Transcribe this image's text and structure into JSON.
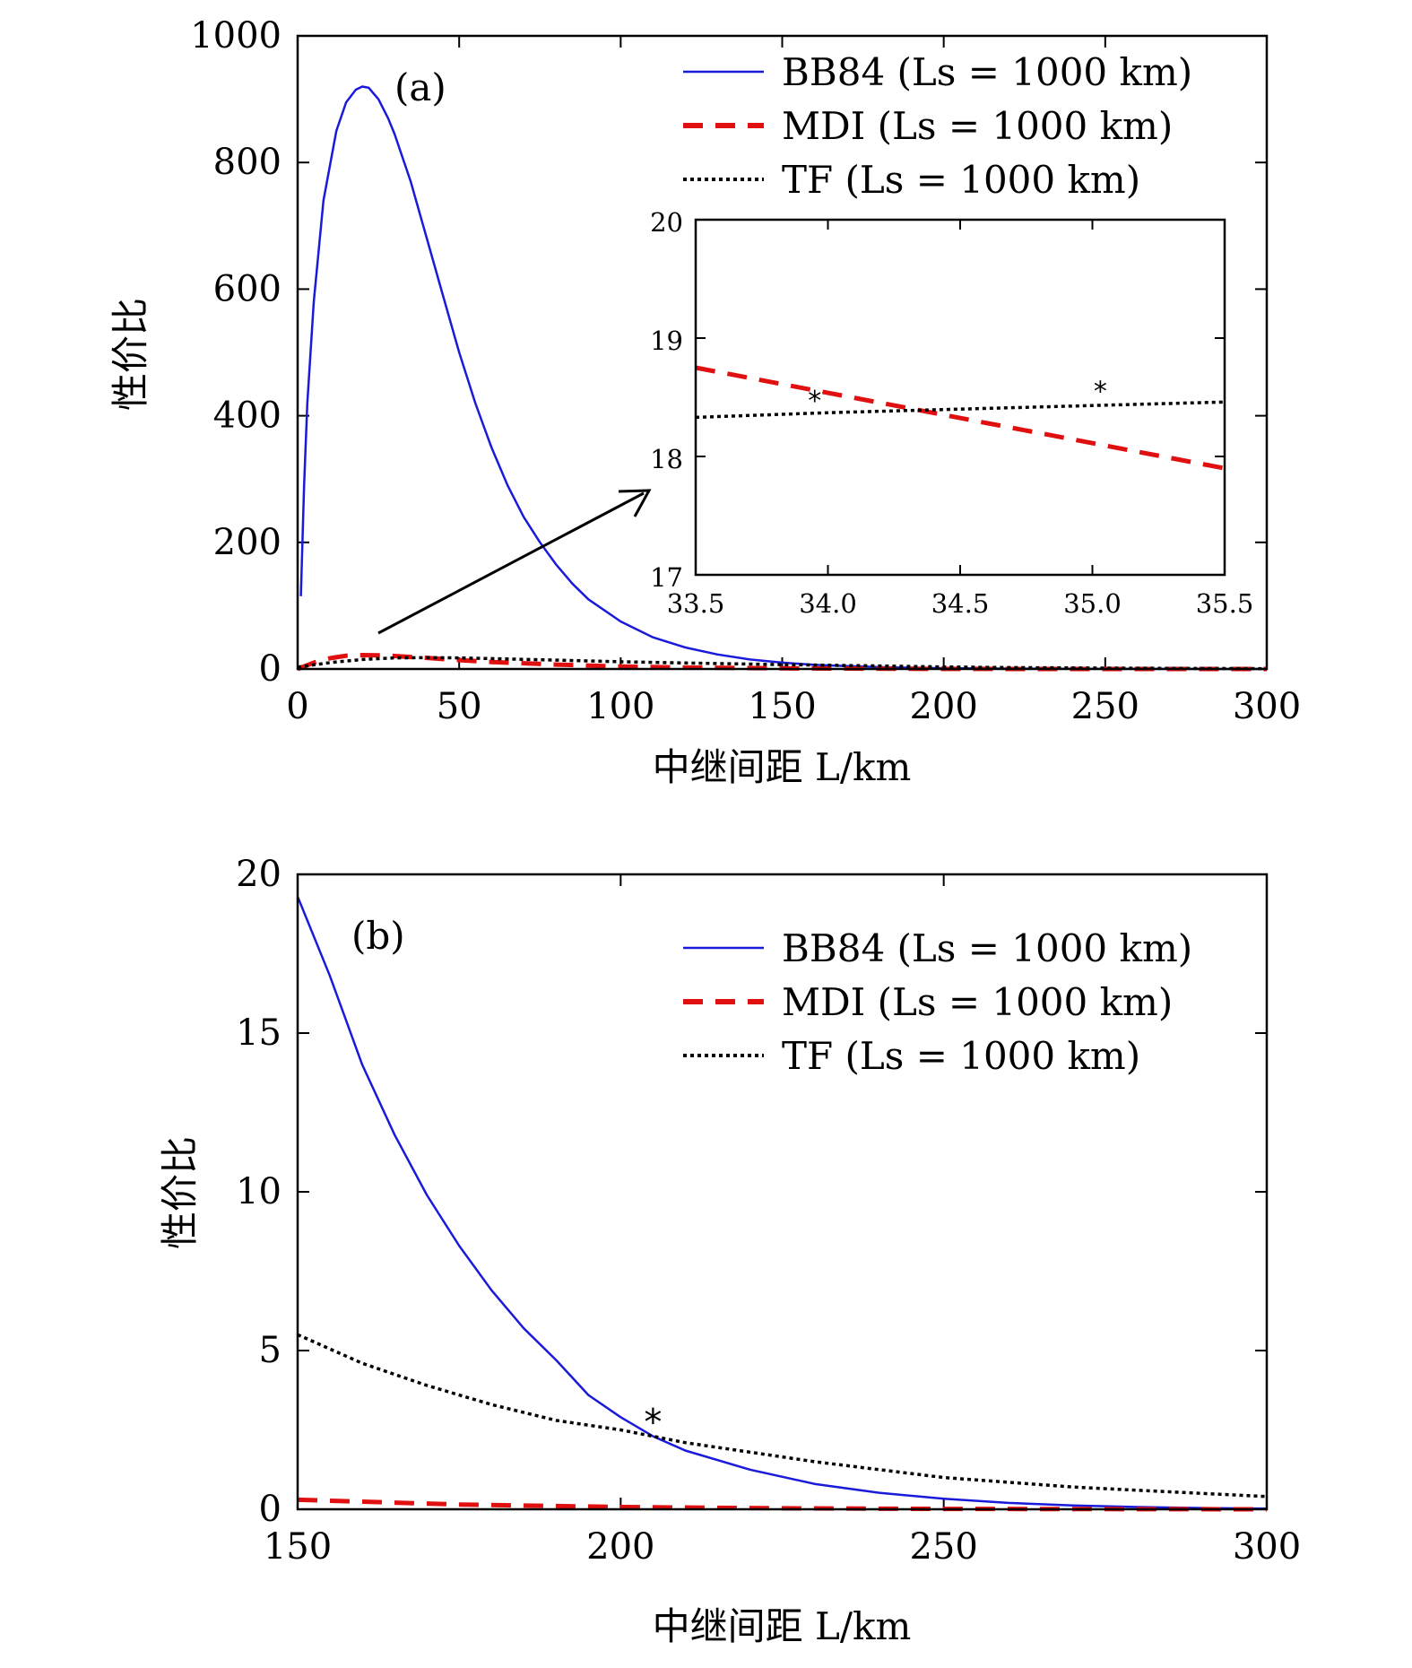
{
  "chart_data": [
    {
      "type": "line",
      "panel_label": "(a)",
      "xlabel": "中继间距 L/km",
      "ylabel": "性价比",
      "xlim": [
        0,
        300
      ],
      "ylim": [
        0,
        1000
      ],
      "xticks": [
        "0",
        "50",
        "100",
        "150",
        "200",
        "250",
        "300"
      ],
      "yticks": [
        "0",
        "200",
        "400",
        "600",
        "800",
        "1000"
      ],
      "legend_position": "top-right",
      "series": [
        {
          "name": "BB84 (Ls = 1000 km)",
          "color": "#1a1adb",
          "style": "solid",
          "x": [
            1,
            2,
            3,
            5,
            8,
            12,
            15,
            18,
            20,
            22,
            25,
            28,
            30,
            35,
            40,
            45,
            50,
            55,
            60,
            65,
            70,
            75,
            80,
            85,
            90,
            100,
            110,
            120,
            130,
            140,
            150,
            160,
            170,
            180,
            190,
            200,
            220,
            250,
            300
          ],
          "y": [
            115,
            290,
            420,
            580,
            740,
            850,
            895,
            915,
            920,
            918,
            900,
            870,
            845,
            770,
            680,
            590,
            500,
            420,
            350,
            290,
            240,
            200,
            165,
            135,
            110,
            75,
            50,
            34,
            23,
            15,
            10,
            6.5,
            4.5,
            3,
            2,
            1.3,
            0.5,
            0.15,
            0
          ]
        },
        {
          "name": "MDI (Ls = 1000 km)",
          "color": "#e01010",
          "style": "dashed",
          "x": [
            0,
            5,
            10,
            15,
            20,
            25,
            30,
            35,
            40,
            50,
            60,
            80,
            100,
            120,
            150,
            200,
            250,
            300
          ],
          "y": [
            0,
            10,
            17,
            21,
            22,
            21.5,
            20.5,
            19,
            17.5,
            14,
            11,
            7,
            4,
            2.3,
            1,
            0.2,
            0.05,
            0
          ]
        },
        {
          "name": "TF (Ls = 1000 km)",
          "color": "#000000",
          "style": "dotted",
          "x": [
            0,
            10,
            20,
            30,
            40,
            50,
            60,
            80,
            100,
            120,
            150,
            180,
            200,
            220,
            250,
            300
          ],
          "y": [
            3,
            10,
            15,
            17.5,
            18,
            17.5,
            16.5,
            14,
            11.5,
            9.5,
            7,
            4.8,
            3.2,
            2.3,
            1.4,
            0.5
          ]
        }
      ],
      "inset": {
        "xlim": [
          33.5,
          35.5
        ],
        "ylim": [
          17,
          20
        ],
        "xticks": [
          "33.5",
          "34.0",
          "34.5",
          "35.0",
          "35.5"
        ],
        "yticks": [
          "17",
          "18",
          "19",
          "20"
        ],
        "series": [
          {
            "name": "MDI",
            "color": "#e01010",
            "style": "dashed",
            "x": [
              33.5,
              35.5
            ],
            "y": [
              18.75,
              17.9
            ]
          },
          {
            "name": "TF",
            "color": "#000000",
            "style": "dotted",
            "x": [
              33.5,
              34.0,
              34.5,
              35.0,
              35.5
            ],
            "y": [
              18.33,
              18.37,
              18.4,
              18.43,
              18.46
            ]
          }
        ],
        "markers": [
          {
            "x": 33.95,
            "y": 18.38,
            "symbol": "*"
          },
          {
            "x": 35.03,
            "y": 18.46,
            "symbol": "*"
          }
        ]
      }
    },
    {
      "type": "line",
      "panel_label": "(b)",
      "xlabel": "中继间距 L/km",
      "ylabel": "性价比",
      "xlim": [
        150,
        300
      ],
      "ylim": [
        0,
        20
      ],
      "xticks": [
        "150",
        "200",
        "250",
        "300"
      ],
      "yticks": [
        "0",
        "5",
        "10",
        "15",
        "20"
      ],
      "legend_position": "top-right",
      "series": [
        {
          "name": "BB84 (Ls = 1000 km)",
          "color": "#1a1adb",
          "style": "solid",
          "x": [
            150,
            155,
            160,
            165,
            170,
            175,
            180,
            185,
            190,
            195,
            200,
            205,
            210,
            220,
            230,
            240,
            250,
            260,
            270,
            280,
            290,
            300
          ],
          "y": [
            19.3,
            16.8,
            14.0,
            11.8,
            9.9,
            8.3,
            6.9,
            5.7,
            4.7,
            3.6,
            2.9,
            2.3,
            1.85,
            1.25,
            0.8,
            0.52,
            0.33,
            0.2,
            0.12,
            0.07,
            0.04,
            0.02
          ]
        },
        {
          "name": "MDI (Ls = 1000 km)",
          "color": "#e01010",
          "style": "dashed",
          "x": [
            150,
            175,
            200,
            225,
            250,
            275,
            300
          ],
          "y": [
            0.3,
            0.15,
            0.07,
            0.03,
            0.01,
            0.005,
            0
          ]
        },
        {
          "name": "TF (Ls = 1000 km)",
          "color": "#000000",
          "style": "dotted",
          "x": [
            150,
            160,
            170,
            180,
            190,
            200,
            205,
            210,
            220,
            230,
            240,
            250,
            260,
            270,
            280,
            290,
            300
          ],
          "y": [
            5.5,
            4.6,
            3.9,
            3.3,
            2.8,
            2.5,
            2.3,
            2.1,
            1.8,
            1.5,
            1.25,
            1.0,
            0.85,
            0.7,
            0.6,
            0.5,
            0.4
          ]
        }
      ],
      "markers": [
        {
          "x": 205,
          "y": 2.3,
          "symbol": "*"
        }
      ]
    }
  ],
  "legend_entries": [
    {
      "label": "BB84",
      "param": "(Ls = 1000 km)"
    },
    {
      "label": "MDI",
      "param": "(Ls = 1000 km)"
    },
    {
      "label": "TF",
      "param": "(Ls = 1000 km)"
    }
  ]
}
